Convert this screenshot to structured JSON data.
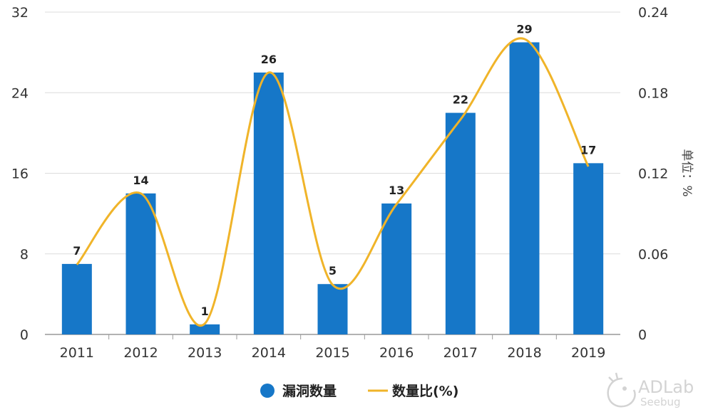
{
  "chart_data": {
    "type": "bar",
    "categories": [
      "2011",
      "2012",
      "2013",
      "2014",
      "2015",
      "2016",
      "2017",
      "2018",
      "2019"
    ],
    "series": [
      {
        "name": "漏洞数量",
        "type": "bar",
        "axis": "left",
        "color": "#1677c8",
        "values": [
          7,
          14,
          1,
          26,
          5,
          13,
          22,
          29,
          17
        ]
      },
      {
        "name": "数量比(%)",
        "type": "line",
        "smooth": true,
        "axis": "right",
        "color": "#f0b429",
        "values": [
          0.052,
          0.105,
          0.008,
          0.195,
          0.037,
          0.097,
          0.16,
          0.22,
          0.125
        ]
      }
    ],
    "y_left": {
      "min": 0,
      "max": 32,
      "ticks": [
        "0",
        "8",
        "16",
        "24",
        "32"
      ]
    },
    "y_right": {
      "min": 0,
      "max": 0.24,
      "ticks": [
        "0",
        "0.06",
        "0.12",
        "0.18",
        "0.24"
      ],
      "label": "单位：%"
    },
    "grid": true,
    "legend": "bottom-center"
  },
  "watermark": {
    "brand": "ADLab",
    "sub": "Seebug"
  }
}
